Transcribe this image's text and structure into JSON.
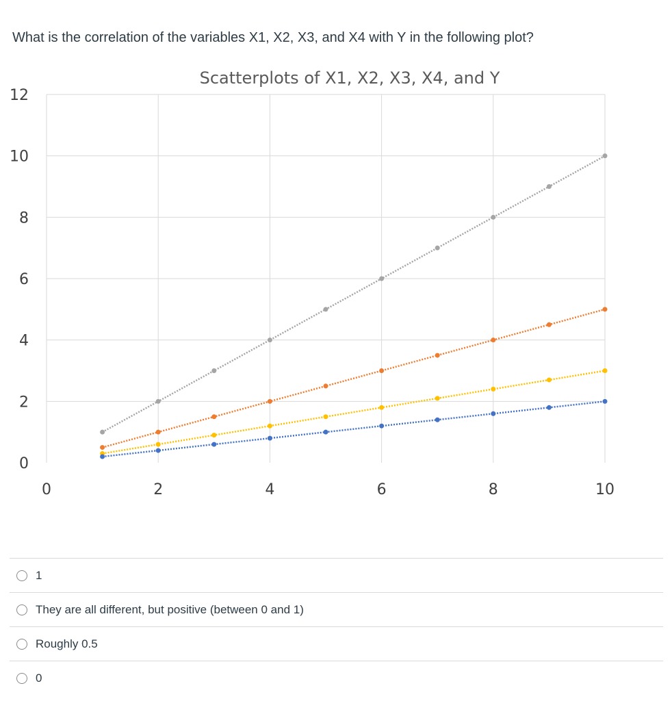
{
  "question": {
    "text": "What is the correlation of the variables X1, X2, X3, and X4 with Y in the following plot?"
  },
  "chart_data": {
    "type": "scatter",
    "title": "Scatterplots of X1, X2, X3, X4, and Y",
    "xlabel": "",
    "ylabel": "",
    "xlim": [
      0,
      10
    ],
    "ylim": [
      0,
      12
    ],
    "x_ticks": [
      "0",
      "2",
      "4",
      "6",
      "8",
      "10"
    ],
    "y_ticks": [
      "0",
      "2",
      "4",
      "6",
      "8",
      "10",
      "12"
    ],
    "grid": true,
    "trendlines": "dotted linear",
    "series": [
      {
        "color": "#a5a5a5",
        "x": [
          1,
          2,
          3,
          4,
          5,
          6,
          7,
          8,
          9,
          10
        ],
        "y": [
          1,
          2,
          3,
          4,
          5,
          6,
          7,
          8,
          9,
          10
        ]
      },
      {
        "color": "#ed7d31",
        "x": [
          1,
          2,
          3,
          4,
          5,
          6,
          7,
          8,
          9,
          10
        ],
        "y": [
          0.5,
          1,
          1.5,
          2,
          2.5,
          3,
          3.5,
          4,
          4.5,
          5
        ]
      },
      {
        "color": "#ffc000",
        "x": [
          1,
          2,
          3,
          4,
          5,
          6,
          7,
          8,
          9,
          10
        ],
        "y": [
          0.3,
          0.6,
          0.9,
          1.2,
          1.5,
          1.8,
          2.1,
          2.4,
          2.7,
          3
        ]
      },
      {
        "color": "#4472c4",
        "x": [
          1,
          2,
          3,
          4,
          5,
          6,
          7,
          8,
          9,
          10
        ],
        "y": [
          0.2,
          0.4,
          0.6,
          0.8,
          1,
          1.2,
          1.4,
          1.6,
          1.8,
          2
        ]
      }
    ]
  },
  "answers": [
    {
      "label": "1"
    },
    {
      "label": "They are all different, but positive (between 0 and 1)"
    },
    {
      "label": "Roughly 0.5"
    },
    {
      "label": "0"
    }
  ]
}
